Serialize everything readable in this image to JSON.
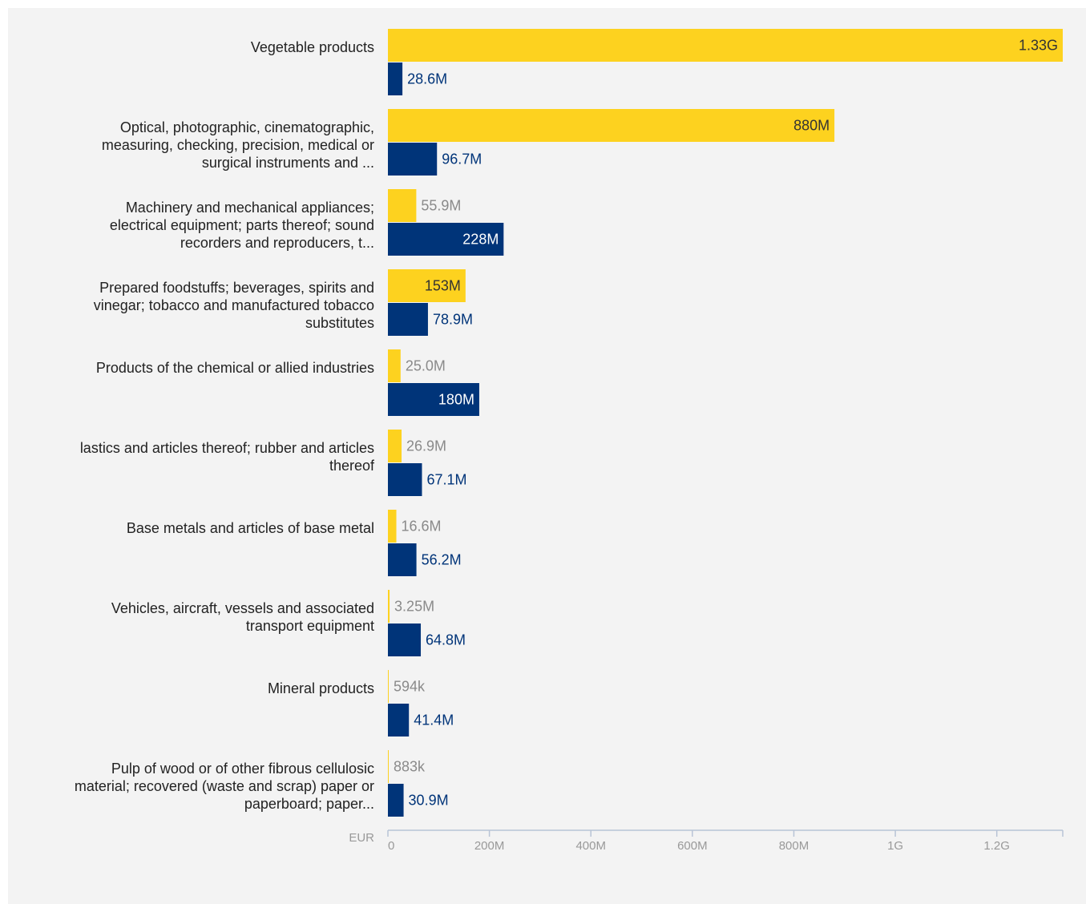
{
  "chart_data": {
    "type": "bar",
    "orientation": "horizontal",
    "categories": [
      "Vegetable products",
      "Optical, photographic, cinematographic, measuring, checking, precision, medical or surgical instruments and ...",
      "Machinery and mechanical appliances; electrical equipment; parts thereof; sound recorders and reproducers, t...",
      "Prepared foodstuffs; beverages, spirits and vinegar; tobacco and manufactured tobacco substitutes",
      "Products of the chemical or allied industries",
      "Plastics and articles thereof; rubber and articles thereof",
      "Base metals and articles of base metal",
      "Vehicles, aircraft, vessels and associated transport equipment",
      "Mineral products",
      "Pulp of wood or of other fibrous cellulosic material; recovered (waste and scrap) paper or paperboard; paper..."
    ],
    "category_lines": [
      [
        "Vegetable products"
      ],
      [
        "Optical, photographic, cinematographic,",
        "measuring, checking, precision, medical or",
        "surgical instruments and ..."
      ],
      [
        "Machinery and mechanical appliances;",
        "electrical equipment; parts thereof; sound",
        "recorders and reproducers, t..."
      ],
      [
        "Prepared foodstuffs; beverages, spirits and",
        "vinegar; tobacco and manufactured tobacco",
        "substitutes"
      ],
      [
        "Products of the chemical or allied industries"
      ],
      [
        "lastics and articles thereof; rubber and articles",
        "thereof"
      ],
      [
        "Base metals and articles of base metal"
      ],
      [
        "Vehicles, aircraft, vessels and associated",
        "transport equipment"
      ],
      [
        "Mineral products"
      ],
      [
        "Pulp of wood or of other fibrous cellulosic",
        "material; recovered (waste and scrap) paper or",
        "paperboard; paper..."
      ]
    ],
    "series": [
      {
        "color": "#fdd21f",
        "values": [
          1330000000,
          880000000,
          55900000,
          153000000,
          25000000,
          26900000,
          16600000,
          3250000,
          594000,
          883000
        ],
        "labels": [
          "1.33G",
          "880M",
          "55.9M",
          "153M",
          "25.0M",
          "26.9M",
          "16.6M",
          "3.25M",
          "594k",
          "883k"
        ]
      },
      {
        "color": "#003479",
        "values": [
          28600000,
          96700000,
          228000000,
          78900000,
          180000000,
          67100000,
          56200000,
          64800000,
          41400000,
          30900000
        ],
        "labels": [
          "28.6M",
          "96.7M",
          "228M",
          "78.9M",
          "180M",
          "67.1M",
          "56.2M",
          "64.8M",
          "41.4M",
          "30.9M"
        ]
      }
    ],
    "xlim": [
      0,
      1330000000
    ],
    "x_ticks": [
      0,
      200000000,
      400000000,
      600000000,
      800000000,
      1000000000,
      1200000000
    ],
    "x_tick_labels": [
      "0",
      "200M",
      "400M",
      "600M",
      "800M",
      "1G",
      "1.2G"
    ],
    "x_unit_label": "EUR",
    "grid": false,
    "legend": "none"
  }
}
